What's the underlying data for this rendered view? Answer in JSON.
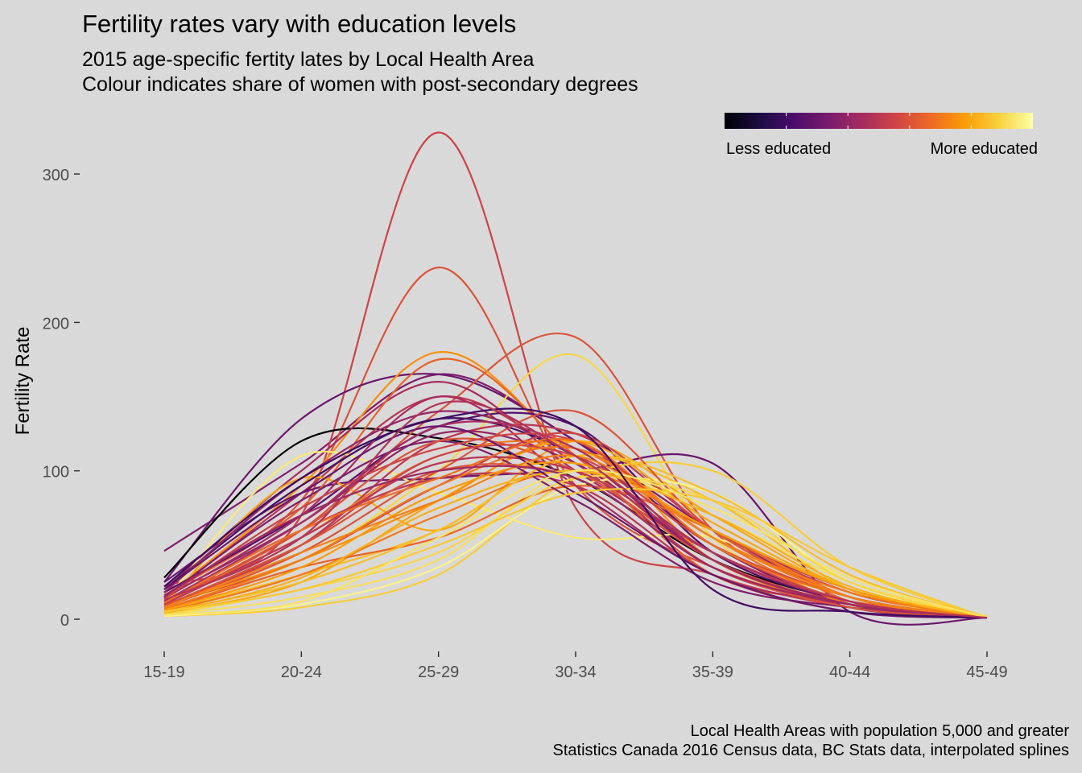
{
  "chart_data": {
    "type": "line",
    "title": "Fertility rates vary with education levels",
    "subtitle": [
      "2015 age-specific fertity lates by Local Health Area",
      "Colour indicates share of women with post-secondary degrees"
    ],
    "caption": [
      "Local Health Areas with population 5,000 and greater",
      "Statistics Canada 2016 Census data, BC Stats data, interpolated splines"
    ],
    "xlabel": "",
    "ylabel": "Fertility Rate",
    "categories": [
      "15-19",
      "20-24",
      "25-29",
      "30-34",
      "35-39",
      "40-44",
      "45-49"
    ],
    "yticks": [
      0,
      100,
      200,
      300
    ],
    "ylim": [
      -15,
      330
    ],
    "grid": false,
    "legend": {
      "placement": "top-right",
      "type": "colorbar",
      "low_label": "Less educated",
      "high_label": "More educated",
      "colors": [
        "#000004",
        "#1b0c41",
        "#4a0c6b",
        "#781c6d",
        "#a52c60",
        "#cf4446",
        "#ed6925",
        "#fb9b06",
        "#f7d13d",
        "#fcffa4"
      ]
    },
    "series": [
      {
        "values": [
          46,
          105,
          165,
          120,
          60,
          15,
          2
        ],
        "edu": 0.35
      },
      {
        "values": [
          22,
          70,
          328,
          75,
          30,
          8,
          1
        ],
        "edu": 0.55
      },
      {
        "values": [
          18,
          80,
          237,
          90,
          35,
          10,
          1
        ],
        "edu": 0.6
      },
      {
        "values": [
          25,
          135,
          165,
          120,
          50,
          10,
          1
        ],
        "edu": 0.3
      },
      {
        "values": [
          28,
          120,
          122,
          95,
          40,
          12,
          1
        ],
        "edu": 0.0
      },
      {
        "values": [
          12,
          60,
          140,
          190,
          60,
          15,
          1
        ],
        "edu": 0.6
      },
      {
        "values": [
          10,
          40,
          100,
          178,
          55,
          15,
          1
        ],
        "edu": 0.9
      },
      {
        "values": [
          15,
          90,
          180,
          110,
          40,
          8,
          1
        ],
        "edu": 0.75
      },
      {
        "values": [
          20,
          100,
          160,
          100,
          45,
          10,
          1
        ],
        "edu": 0.45
      },
      {
        "values": [
          25,
          85,
          95,
          100,
          105,
          5,
          1
        ],
        "edu": 0.3
      },
      {
        "values": [
          14,
          85,
          150,
          105,
          35,
          10,
          1
        ],
        "edu": 0.5
      },
      {
        "values": [
          16,
          75,
          175,
          110,
          30,
          12,
          1
        ],
        "edu": 0.65
      },
      {
        "values": [
          12,
          110,
          85,
          55,
          55,
          15,
          1
        ],
        "edu": 0.95
      },
      {
        "values": [
          10,
          95,
          60,
          120,
          70,
          20,
          1
        ],
        "edu": 0.8
      },
      {
        "values": [
          8,
          50,
          120,
          125,
          60,
          20,
          1
        ],
        "edu": 0.5
      },
      {
        "values": [
          20,
          90,
          135,
          110,
          40,
          10,
          1
        ],
        "edu": 0.2
      },
      {
        "values": [
          18,
          70,
          130,
          130,
          45,
          12,
          1
        ],
        "edu": 0.25
      },
      {
        "values": [
          15,
          65,
          125,
          105,
          40,
          8,
          1
        ],
        "edu": 0.4
      },
      {
        "values": [
          10,
          40,
          90,
          125,
          60,
          18,
          1
        ],
        "edu": 0.55
      },
      {
        "values": [
          12,
          55,
          110,
          115,
          55,
          10,
          1
        ],
        "edu": 0.7
      },
      {
        "values": [
          6,
          30,
          60,
          110,
          80,
          20,
          1
        ],
        "edu": 0.85
      },
      {
        "values": [
          3,
          15,
          40,
          100,
          70,
          25,
          2
        ],
        "edu": 0.92
      },
      {
        "values": [
          2,
          8,
          30,
          95,
          100,
          35,
          1
        ],
        "edu": 0.88
      },
      {
        "values": [
          2,
          10,
          35,
          90,
          85,
          25,
          1
        ],
        "edu": 0.97
      },
      {
        "values": [
          4,
          25,
          80,
          120,
          65,
          20,
          1
        ],
        "edu": 0.8
      },
      {
        "values": [
          8,
          45,
          100,
          140,
          60,
          15,
          1
        ],
        "edu": 0.6
      },
      {
        "values": [
          14,
          70,
          150,
          90,
          30,
          10,
          1
        ],
        "edu": 0.45
      },
      {
        "values": [
          10,
          40,
          80,
          120,
          40,
          10,
          1
        ],
        "edu": 0.75
      },
      {
        "values": [
          5,
          30,
          70,
          100,
          60,
          15,
          1
        ],
        "edu": 0.7
      },
      {
        "values": [
          6,
          35,
          55,
          90,
          60,
          12,
          1
        ],
        "edu": 0.65
      },
      {
        "values": [
          12,
          60,
          95,
          90,
          30,
          5,
          1
        ],
        "edu": 0.5
      },
      {
        "values": [
          15,
          80,
          120,
          80,
          25,
          8,
          1
        ],
        "edu": 0.35
      },
      {
        "values": [
          10,
          60,
          120,
          100,
          40,
          10,
          1
        ],
        "edu": 0.6
      },
      {
        "values": [
          8,
          50,
          110,
          110,
          50,
          15,
          1
        ],
        "edu": 0.55
      },
      {
        "values": [
          18,
          95,
          140,
          110,
          40,
          10,
          1
        ],
        "edu": 0.4
      },
      {
        "values": [
          5,
          25,
          60,
          110,
          85,
          30,
          1
        ],
        "edu": 0.85
      },
      {
        "values": [
          3,
          20,
          45,
          95,
          80,
          25,
          1
        ],
        "edu": 0.9
      },
      {
        "values": [
          7,
          40,
          90,
          115,
          55,
          18,
          1
        ],
        "edu": 0.7
      },
      {
        "values": [
          10,
          55,
          105,
          100,
          45,
          12,
          1
        ],
        "edu": 0.5
      },
      {
        "values": [
          12,
          65,
          130,
          115,
          40,
          10,
          1
        ],
        "edu": 0.45
      },
      {
        "values": [
          9,
          50,
          100,
          95,
          35,
          8,
          1
        ],
        "edu": 0.6
      },
      {
        "values": [
          6,
          35,
          85,
          105,
          60,
          20,
          1
        ],
        "edu": 0.78
      },
      {
        "values": [
          4,
          28,
          75,
          100,
          70,
          22,
          1
        ],
        "edu": 0.82
      },
      {
        "values": [
          20,
          85,
          130,
          85,
          30,
          5,
          1
        ],
        "edu": 0.3
      },
      {
        "values": [
          14,
          75,
          115,
          120,
          50,
          12,
          1
        ],
        "edu": 0.55
      },
      {
        "values": [
          11,
          60,
          95,
          120,
          50,
          15,
          1
        ],
        "edu": 0.68
      },
      {
        "values": [
          8,
          45,
          80,
          110,
          55,
          15,
          1
        ],
        "edu": 0.72
      },
      {
        "values": [
          16,
          70,
          100,
          95,
          35,
          10,
          1
        ],
        "edu": 0.42
      },
      {
        "values": [
          5,
          20,
          50,
          85,
          80,
          35,
          1
        ],
        "edu": 0.87
      },
      {
        "values": [
          3,
          12,
          55,
          100,
          75,
          28,
          1
        ],
        "edu": 0.93
      },
      {
        "values": [
          22,
          95,
          135,
          130,
          20,
          5,
          1
        ],
        "edu": 0.2
      },
      {
        "values": [
          13,
          55,
          145,
          110,
          45,
          12,
          1
        ],
        "edu": 0.48
      }
    ]
  }
}
